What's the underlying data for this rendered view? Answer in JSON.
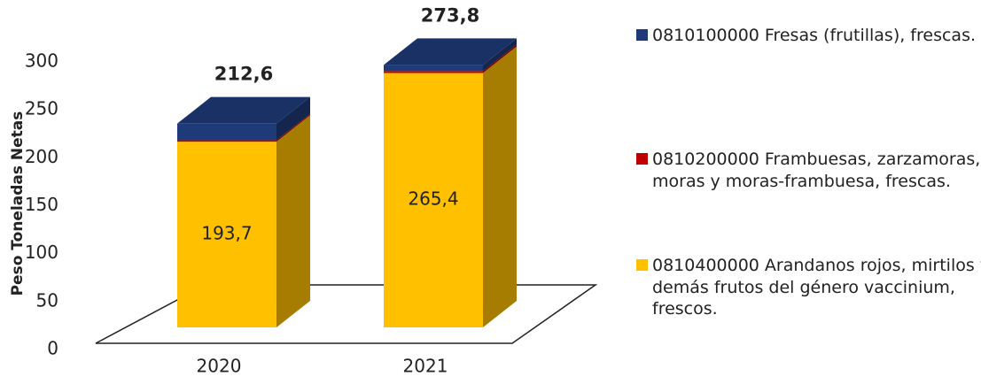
{
  "chart_data": {
    "type": "bar3d_stacked",
    "y_axis_label": "Peso Toneladas Netas",
    "categories": [
      "2020",
      "2021"
    ],
    "series": [
      {
        "name": "0810400000 Arandanos rojos, mirtilos y demás frutos del género vaccinium, frescos.",
        "color": "#FFC000",
        "values": [
          193.7,
          265.4
        ],
        "value_labels": [
          "193,7",
          "265,4"
        ]
      },
      {
        "name": "0810200000 Frambuesas, zarzamoras, moras y moras-frambuesa, frescas.",
        "color": "#C00000",
        "values": [
          1.5,
          2.0
        ]
      },
      {
        "name": "0810100000 Fresas (frutillas), frescas.",
        "color": "#1F3A78",
        "values": [
          17.4,
          6.4
        ]
      }
    ],
    "totals": [
      212.6,
      273.8
    ],
    "total_labels": [
      "212,6",
      "273,8"
    ],
    "ylim": [
      0,
      300
    ],
    "yticks": [
      0,
      50,
      100,
      150,
      200,
      250,
      300
    ],
    "grid": false
  }
}
